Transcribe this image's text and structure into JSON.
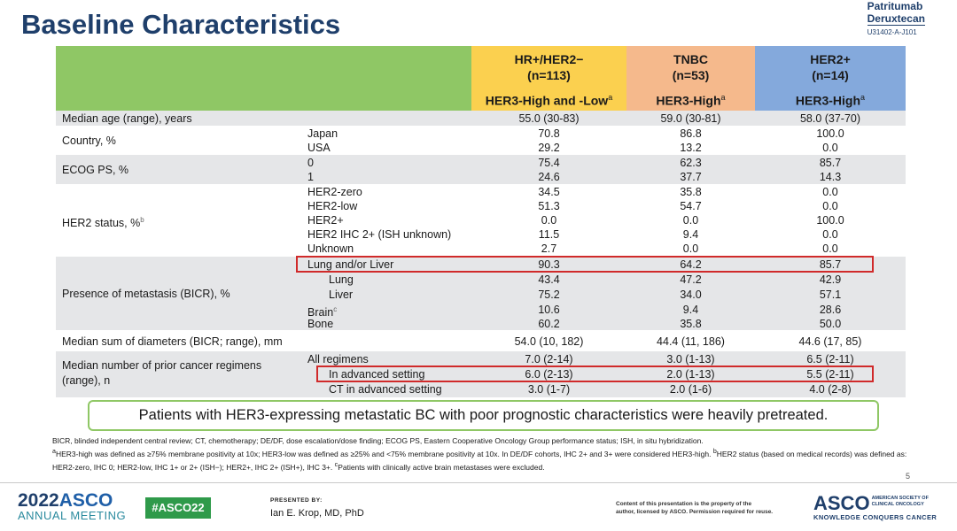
{
  "title": "Baseline Characteristics",
  "brand": {
    "line1": "Patritumab",
    "line2": "Deruxtecan",
    "code": "U31402-A-J101"
  },
  "columns": [
    {
      "name": "HR+/HER2−",
      "n": "(n=113)",
      "group": "HER3-High and -Low",
      "sup": "a",
      "color": "#fbd04f"
    },
    {
      "name": "TNBC",
      "n": "(n=53)",
      "group": "HER3-High",
      "sup": "a",
      "color": "#f5b98c"
    },
    {
      "name": "HER2+",
      "n": "(n=14)",
      "group": "HER3-High",
      "sup": "a",
      "color": "#84a9dc"
    }
  ],
  "rows": {
    "age": {
      "label": "Median age (range), years",
      "v": [
        "55.0 (30-83)",
        "59.0 (30-81)",
        "58.0 (37-70)"
      ]
    },
    "country": {
      "label": "Country, %",
      "japan": {
        "label": "Japan",
        "v": [
          "70.8",
          "86.8",
          "100.0"
        ]
      },
      "usa": {
        "label": "USA",
        "v": [
          "29.2",
          "13.2",
          "0.0"
        ]
      }
    },
    "ecog": {
      "label": "ECOG PS, %",
      "e0": {
        "label": "0",
        "v": [
          "75.4",
          "62.3",
          "85.7"
        ]
      },
      "e1": {
        "label": "1",
        "v": [
          "24.6",
          "37.7",
          "14.3"
        ]
      }
    },
    "her2": {
      "label": "HER2 status, %",
      "sup": "b",
      "zero": {
        "label": "HER2-zero",
        "v": [
          "34.5",
          "35.8",
          "0.0"
        ]
      },
      "low": {
        "label": "HER2-low",
        "v": [
          "51.3",
          "54.7",
          "0.0"
        ]
      },
      "pos": {
        "label": "HER2+",
        "v": [
          "0.0",
          "0.0",
          "100.0"
        ]
      },
      "ihc": {
        "label": "HER2 IHC 2+ (ISH unknown)",
        "v": [
          "11.5",
          "9.4",
          "0.0"
        ]
      },
      "unk": {
        "label": "Unknown",
        "v": [
          "2.7",
          "0.0",
          "0.0"
        ]
      }
    },
    "meta": {
      "label": "Presence of metastasis (BICR), %",
      "lungliver": {
        "label": "Lung and/or Liver",
        "v": [
          "90.3",
          "64.2",
          "85.7"
        ]
      },
      "lung": {
        "label": "Lung",
        "v": [
          "43.4",
          "47.2",
          "42.9"
        ]
      },
      "liver": {
        "label": "Liver",
        "v": [
          "75.2",
          "34.0",
          "57.1"
        ]
      },
      "brain": {
        "label": "Brain",
        "sup": "c",
        "v": [
          "10.6",
          "9.4",
          "28.6"
        ]
      },
      "bone": {
        "label": "Bone",
        "v": [
          "60.2",
          "35.8",
          "50.0"
        ]
      }
    },
    "diam": {
      "label": "Median sum of diameters (BICR; range), mm",
      "v": [
        "54.0 (10, 182)",
        "44.4 (11, 186)",
        "44.6 (17, 85)"
      ]
    },
    "regimens": {
      "label1": "Median number of prior cancer regimens",
      "label2": "(range), n",
      "all": {
        "label": "All regimens",
        "v": [
          "7.0 (2-14)",
          "3.0 (1-13)",
          "6.5 (2-11)"
        ]
      },
      "adv": {
        "label": "In advanced setting",
        "v": [
          "6.0 (2-13)",
          "2.0 (1-13)",
          "5.5 (2-11)"
        ]
      },
      "ct": {
        "label": "CT in advanced setting",
        "v": [
          "3.0 (1-7)",
          "2.0 (1-6)",
          "4.0 (2-8)"
        ]
      }
    }
  },
  "callout": "Patients with HER3-expressing metastatic BC with poor prognostic characteristics were heavily pretreated.",
  "footnotes": {
    "abbr": "BICR, blinded independent central review; CT, chemotherapy; DE/DF, dose escalation/dose finding; ECOG PS, Eastern Cooperative Oncology Group performance status; ISH, in situ hybridization.",
    "a_mark": "a",
    "a": "HER3-high was defined as ≥75% membrane positivity at 10x; HER3-low was defined as ≥25% and <75% membrane positivity at 10x. In DE/DF cohorts, IHC 2+ and 3+ were considered HER3-high.",
    "b_mark": "b",
    "b": "HER2 status (based on medical records) was defined as: HER2-zero, IHC 0; HER2-low, IHC 1+ or 2+ (ISH−); HER2+, IHC 2+ (ISH+), IHC 3+.",
    "c_mark": "c",
    "c": "Patients with clinically active brain metastases were excluded."
  },
  "page_number": "5",
  "footer": {
    "year": "2022",
    "asco": "ASCO",
    "annual_meeting": "ANNUAL MEETING",
    "hashtag": "#ASCO22",
    "presented_by": "PRESENTED BY:",
    "presenter": "Ian E. Krop, MD, PhD",
    "copyright_1": "Content of this presentation is the property of the",
    "copyright_2": "author, licensed by ASCO. Permission required for reuse.",
    "asco_right": "ASCO",
    "society_1": "AMERICAN SOCIETY OF",
    "society_2": "CLINICAL ONCOLOGY",
    "tagline": "KNOWLEDGE CONQUERS CANCER"
  }
}
